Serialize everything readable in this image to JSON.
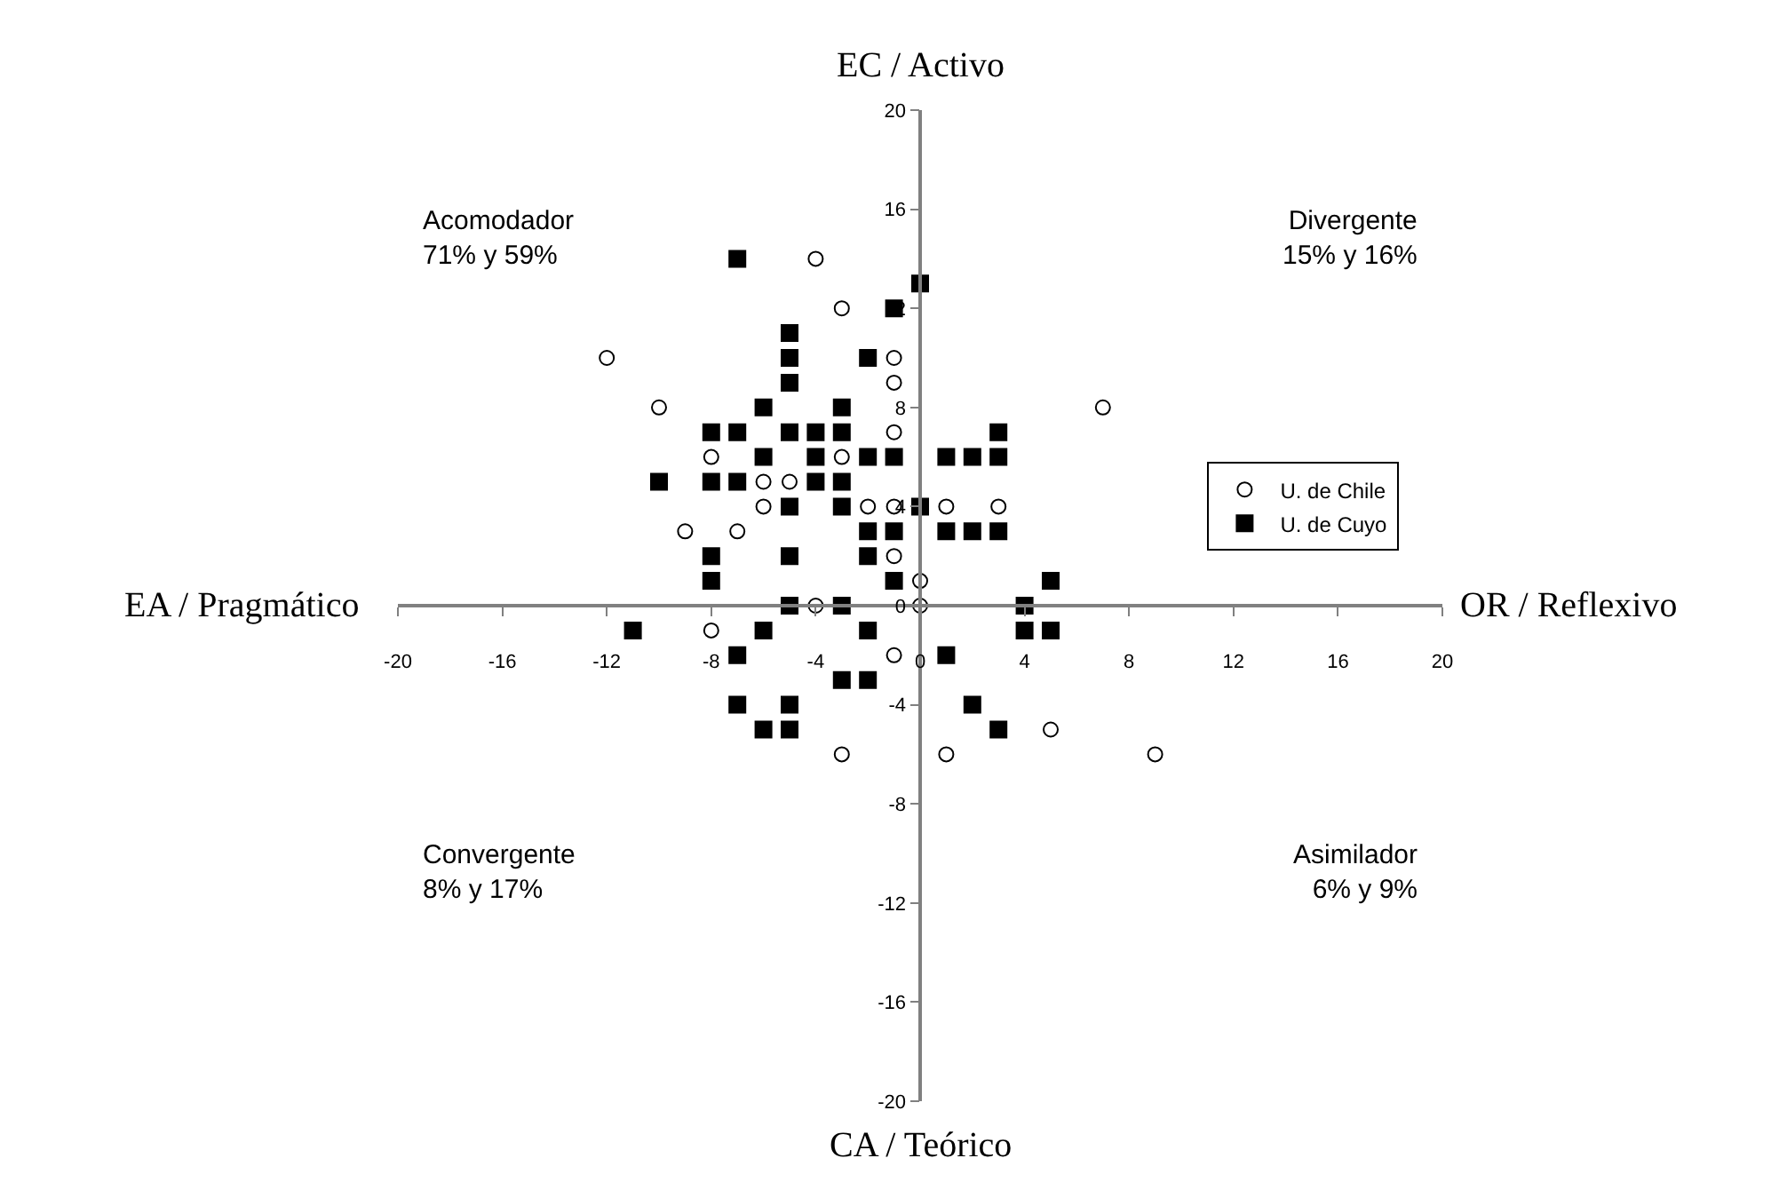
{
  "chart_data": {
    "type": "scatter",
    "xlim": [
      -20,
      20
    ],
    "ylim": [
      -20,
      20
    ],
    "xticks": [
      -20,
      -16,
      -12,
      -8,
      -4,
      0,
      4,
      8,
      12,
      16,
      20
    ],
    "yticks": [
      -20,
      -16,
      -12,
      -8,
      -4,
      0,
      4,
      8,
      12,
      16,
      20
    ],
    "grid": false,
    "legend": "right",
    "series": [
      {
        "name": "U. de Chile",
        "color": "#ffffff",
        "marker": "circle",
        "x": [
          -4,
          -3,
          -12,
          -1,
          -1,
          -10,
          -1,
          -8,
          -3,
          -6,
          -5,
          -6,
          -2,
          -1,
          -9,
          -7,
          -1,
          0,
          -4,
          0,
          -8,
          -1,
          -3,
          7,
          1,
          3,
          5,
          1,
          9
        ],
        "values": [
          14,
          12,
          10,
          10,
          9,
          8,
          7,
          6,
          6,
          5,
          5,
          4,
          4,
          4,
          3,
          3,
          2,
          1,
          0,
          0,
          -1,
          -2,
          -6,
          8,
          4,
          4,
          -5,
          -6,
          -6
        ]
      },
      {
        "name": "U. de Cuyo",
        "color": "#000000",
        "marker": "square",
        "x": [
          -7,
          0,
          -1,
          -5,
          -5,
          -2,
          -5,
          -6,
          -3,
          -8,
          -7,
          -5,
          -4,
          -3,
          -6,
          -4,
          -2,
          -1,
          1,
          2,
          3,
          3,
          -10,
          -8,
          -7,
          -4,
          -3,
          -5,
          -3,
          0,
          -2,
          -1,
          1,
          2,
          3,
          -8,
          -5,
          -2,
          -8,
          -1,
          5,
          -5,
          -3,
          4,
          -11,
          -6,
          -2,
          4,
          5,
          -7,
          1,
          -3,
          -2,
          -7,
          -5,
          2,
          -6,
          -5,
          3
        ],
        "values": [
          14,
          13,
          12,
          11,
          10,
          10,
          9,
          8,
          8,
          7,
          7,
          7,
          7,
          7,
          6,
          6,
          6,
          6,
          6,
          6,
          6,
          7,
          5,
          5,
          5,
          5,
          5,
          4,
          4,
          4,
          3,
          3,
          3,
          3,
          3,
          2,
          2,
          2,
          1,
          1,
          1,
          0,
          0,
          0,
          -1,
          -1,
          -1,
          -1,
          -1,
          -2,
          -2,
          -3,
          -3,
          -4,
          -4,
          -4,
          -5,
          -5,
          -5
        ]
      }
    ],
    "annotations": [
      "EC / Activo",
      "CA / Teórico",
      "EA / Pragmático",
      "OR / Reflexivo",
      "Acomodador\n71% y 59%",
      "Divergente\n15% y 16%",
      "Convergente\n8% y 17%",
      "Asimilador\n6% y 9%"
    ]
  }
}
